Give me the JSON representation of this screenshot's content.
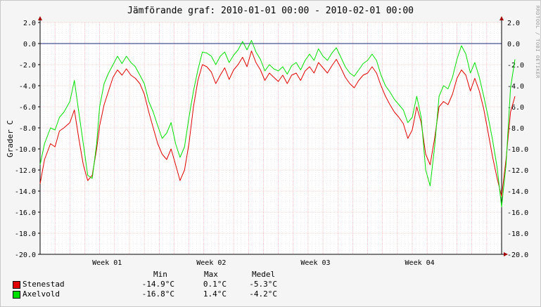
{
  "title": "Jämförande graf: 2010-01-01 00:00 - 2010-02-01 00:00",
  "watermark": "RRDTOOL / TOBI OETIKER",
  "colors": {
    "grid_major": "#f2a8a8",
    "grid_minor": "#d9d9d9",
    "zero_line": "#1a237e",
    "axis_arrow": "#a00000"
  },
  "legend": {
    "headers": {
      "min": "Min",
      "max": "Max",
      "avg": "Medel"
    },
    "entries": [
      {
        "name": "Stenestad",
        "color": "#e00000",
        "min": "-14.9°C",
        "max": "0.1°C",
        "avg": "-5.3°C"
      },
      {
        "name": "Axelvold",
        "color": "#00e000",
        "min": "-16.8°C",
        "max": "1.4°C",
        "avg": "-4.2°C"
      }
    ]
  },
  "chart_data": {
    "type": "line",
    "title": "Jämförande graf: 2010-01-01 00:00 - 2010-02-01 00:00",
    "ylabel": "Grader C",
    "xlabel": "",
    "ylim": [
      -20,
      2
    ],
    "xlim_days": [
      1,
      32
    ],
    "x_ticks": [
      {
        "label": "Week 01",
        "day": 5.5
      },
      {
        "label": "Week 02",
        "day": 12.5
      },
      {
        "label": "Week 03",
        "day": 19.5
      },
      {
        "label": "Week 04",
        "day": 26.5
      }
    ],
    "y_ticks": [
      "2.0",
      "0.0",
      "-2.0",
      "-4.0",
      "-6.0",
      "-8.0",
      "-10.0",
      "-12.0",
      "-14.0",
      "-16.0",
      "-18.0",
      "-20.0"
    ],
    "series": [
      {
        "name": "Stenestad",
        "color": "#e00000",
        "points": [
          [
            1,
            -13.3
          ],
          [
            1.3,
            -11
          ],
          [
            1.7,
            -9.5
          ],
          [
            2,
            -9.8
          ],
          [
            2.3,
            -8.3
          ],
          [
            2.6,
            -8
          ],
          [
            3,
            -7.5
          ],
          [
            3.3,
            -6.3
          ],
          [
            3.6,
            -9
          ],
          [
            3.9,
            -11.5
          ],
          [
            4.2,
            -13
          ],
          [
            4.5,
            -12.5
          ],
          [
            4.8,
            -10
          ],
          [
            5,
            -7.8
          ],
          [
            5.3,
            -5.8
          ],
          [
            5.6,
            -4.5
          ],
          [
            5.9,
            -3.2
          ],
          [
            6.2,
            -2.5
          ],
          [
            6.5,
            -3
          ],
          [
            6.8,
            -2.4
          ],
          [
            7.1,
            -3
          ],
          [
            7.4,
            -3.3
          ],
          [
            7.7,
            -3.8
          ],
          [
            8,
            -4.8
          ],
          [
            8.3,
            -6.5
          ],
          [
            8.6,
            -8
          ],
          [
            8.9,
            -9.5
          ],
          [
            9.2,
            -10.5
          ],
          [
            9.5,
            -11
          ],
          [
            9.8,
            -10
          ],
          [
            10.1,
            -11.5
          ],
          [
            10.4,
            -13
          ],
          [
            10.7,
            -12
          ],
          [
            11,
            -9.5
          ],
          [
            11.3,
            -6
          ],
          [
            11.6,
            -3.5
          ],
          [
            11.9,
            -2
          ],
          [
            12.2,
            -2.2
          ],
          [
            12.5,
            -2.7
          ],
          [
            12.8,
            -3.8
          ],
          [
            13.1,
            -3
          ],
          [
            13.4,
            -2.3
          ],
          [
            13.7,
            -3.4
          ],
          [
            14,
            -2.5
          ],
          [
            14.3,
            -2
          ],
          [
            14.6,
            -1.3
          ],
          [
            14.9,
            -2.2
          ],
          [
            15.2,
            -0.7
          ],
          [
            15.5,
            -1.8
          ],
          [
            15.8,
            -2.5
          ],
          [
            16.1,
            -3.5
          ],
          [
            16.4,
            -2.8
          ],
          [
            16.7,
            -3.2
          ],
          [
            17,
            -3.6
          ],
          [
            17.3,
            -3
          ],
          [
            17.6,
            -3.8
          ],
          [
            17.9,
            -3
          ],
          [
            18.2,
            -2.8
          ],
          [
            18.5,
            -3.5
          ],
          [
            18.8,
            -2.6
          ],
          [
            19.1,
            -2.2
          ],
          [
            19.4,
            -2.8
          ],
          [
            19.7,
            -1.8
          ],
          [
            20,
            -2.3
          ],
          [
            20.3,
            -2.8
          ],
          [
            20.6,
            -2.1
          ],
          [
            20.9,
            -1.5
          ],
          [
            21.2,
            -2.3
          ],
          [
            21.5,
            -3.2
          ],
          [
            21.8,
            -3.8
          ],
          [
            22.1,
            -4.2
          ],
          [
            22.4,
            -3.5
          ],
          [
            22.7,
            -3
          ],
          [
            23,
            -2.8
          ],
          [
            23.3,
            -2.2
          ],
          [
            23.6,
            -2.8
          ],
          [
            23.9,
            -4
          ],
          [
            24.2,
            -5
          ],
          [
            24.5,
            -5.8
          ],
          [
            24.8,
            -6.5
          ],
          [
            25.1,
            -7
          ],
          [
            25.4,
            -7.6
          ],
          [
            25.7,
            -9
          ],
          [
            26,
            -8.2
          ],
          [
            26.3,
            -6
          ],
          [
            26.6,
            -7.5
          ],
          [
            26.9,
            -10.5
          ],
          [
            27.2,
            -11.5
          ],
          [
            27.5,
            -9
          ],
          [
            27.8,
            -6
          ],
          [
            28.1,
            -5.5
          ],
          [
            28.4,
            -5.8
          ],
          [
            28.7,
            -4.8
          ],
          [
            29,
            -3.3
          ],
          [
            29.3,
            -2.5
          ],
          [
            29.6,
            -3
          ],
          [
            29.9,
            -4.5
          ],
          [
            30.2,
            -3.3
          ],
          [
            30.5,
            -4.5
          ],
          [
            30.8,
            -6.2
          ],
          [
            31.1,
            -8.5
          ],
          [
            31.4,
            -10.8
          ],
          [
            31.7,
            -12.8
          ],
          [
            32,
            -14.5
          ],
          [
            32.3,
            -11
          ],
          [
            32.6,
            -6.5
          ],
          [
            32.9,
            -5
          ]
        ]
      },
      {
        "name": "Axelvold",
        "color": "#00e000",
        "points": [
          [
            1,
            -11.5
          ],
          [
            1.3,
            -9.5
          ],
          [
            1.7,
            -8
          ],
          [
            2,
            -8.2
          ],
          [
            2.3,
            -7
          ],
          [
            2.6,
            -6.5
          ],
          [
            3,
            -5.5
          ],
          [
            3.3,
            -3.5
          ],
          [
            3.6,
            -6.5
          ],
          [
            3.9,
            -9.5
          ],
          [
            4.2,
            -12.5
          ],
          [
            4.5,
            -12.8
          ],
          [
            4.8,
            -9.5
          ],
          [
            5,
            -6
          ],
          [
            5.3,
            -3.8
          ],
          [
            5.6,
            -2.8
          ],
          [
            5.9,
            -2
          ],
          [
            6.2,
            -1.2
          ],
          [
            6.5,
            -1.9
          ],
          [
            6.8,
            -1.2
          ],
          [
            7.1,
            -1.8
          ],
          [
            7.4,
            -2.2
          ],
          [
            7.7,
            -3
          ],
          [
            8,
            -3.8
          ],
          [
            8.3,
            -5.5
          ],
          [
            8.6,
            -6.5
          ],
          [
            8.9,
            -7.8
          ],
          [
            9.2,
            -9
          ],
          [
            9.5,
            -8.5
          ],
          [
            9.8,
            -7.5
          ],
          [
            10.1,
            -9.5
          ],
          [
            10.4,
            -10.8
          ],
          [
            10.7,
            -9.8
          ],
          [
            11,
            -7
          ],
          [
            11.3,
            -4.5
          ],
          [
            11.6,
            -2.5
          ],
          [
            11.9,
            -0.8
          ],
          [
            12.2,
            -0.9
          ],
          [
            12.5,
            -1.2
          ],
          [
            12.8,
            -2
          ],
          [
            13.1,
            -1.2
          ],
          [
            13.4,
            -0.8
          ],
          [
            13.7,
            -1.8
          ],
          [
            14,
            -1.1
          ],
          [
            14.3,
            -0.6
          ],
          [
            14.6,
            0.2
          ],
          [
            14.9,
            -0.6
          ],
          [
            15.2,
            0.3
          ],
          [
            15.5,
            -0.8
          ],
          [
            15.8,
            -1.5
          ],
          [
            16.1,
            -2.6
          ],
          [
            16.4,
            -2
          ],
          [
            16.7,
            -2.4
          ],
          [
            17,
            -2.6
          ],
          [
            17.3,
            -2.2
          ],
          [
            17.6,
            -2.9
          ],
          [
            17.9,
            -2.1
          ],
          [
            18.2,
            -1.8
          ],
          [
            18.5,
            -2.5
          ],
          [
            18.8,
            -1.6
          ],
          [
            19.1,
            -1
          ],
          [
            19.4,
            -1.6
          ],
          [
            19.7,
            -0.5
          ],
          [
            20,
            -1.2
          ],
          [
            20.3,
            -1.6
          ],
          [
            20.6,
            -0.9
          ],
          [
            20.9,
            -0.4
          ],
          [
            21.2,
            -1.3
          ],
          [
            21.5,
            -2.2
          ],
          [
            21.8,
            -2.8
          ],
          [
            22.1,
            -3.1
          ],
          [
            22.4,
            -2.5
          ],
          [
            22.7,
            -1.9
          ],
          [
            23,
            -1.6
          ],
          [
            23.3,
            -1
          ],
          [
            23.6,
            -1.6
          ],
          [
            23.9,
            -3
          ],
          [
            24.2,
            -4
          ],
          [
            24.5,
            -4.6
          ],
          [
            24.8,
            -5.3
          ],
          [
            25.1,
            -5.8
          ],
          [
            25.4,
            -6.3
          ],
          [
            25.7,
            -7.5
          ],
          [
            26,
            -7
          ],
          [
            26.3,
            -5
          ],
          [
            26.6,
            -7
          ],
          [
            26.9,
            -12
          ],
          [
            27.2,
            -13.5
          ],
          [
            27.5,
            -9.8
          ],
          [
            27.8,
            -5
          ],
          [
            28.1,
            -4
          ],
          [
            28.4,
            -4.3
          ],
          [
            28.7,
            -3.2
          ],
          [
            29,
            -1.5
          ],
          [
            29.3,
            -0.2
          ],
          [
            29.6,
            -1
          ],
          [
            29.9,
            -2.8
          ],
          [
            30.2,
            -1.8
          ],
          [
            30.5,
            -3.2
          ],
          [
            30.8,
            -5
          ],
          [
            31.1,
            -7
          ],
          [
            31.4,
            -9.2
          ],
          [
            31.7,
            -11.8
          ],
          [
            32,
            -15.5
          ],
          [
            32.3,
            -11.5
          ],
          [
            32.6,
            -4.2
          ],
          [
            32.9,
            -1.5
          ]
        ]
      }
    ]
  }
}
